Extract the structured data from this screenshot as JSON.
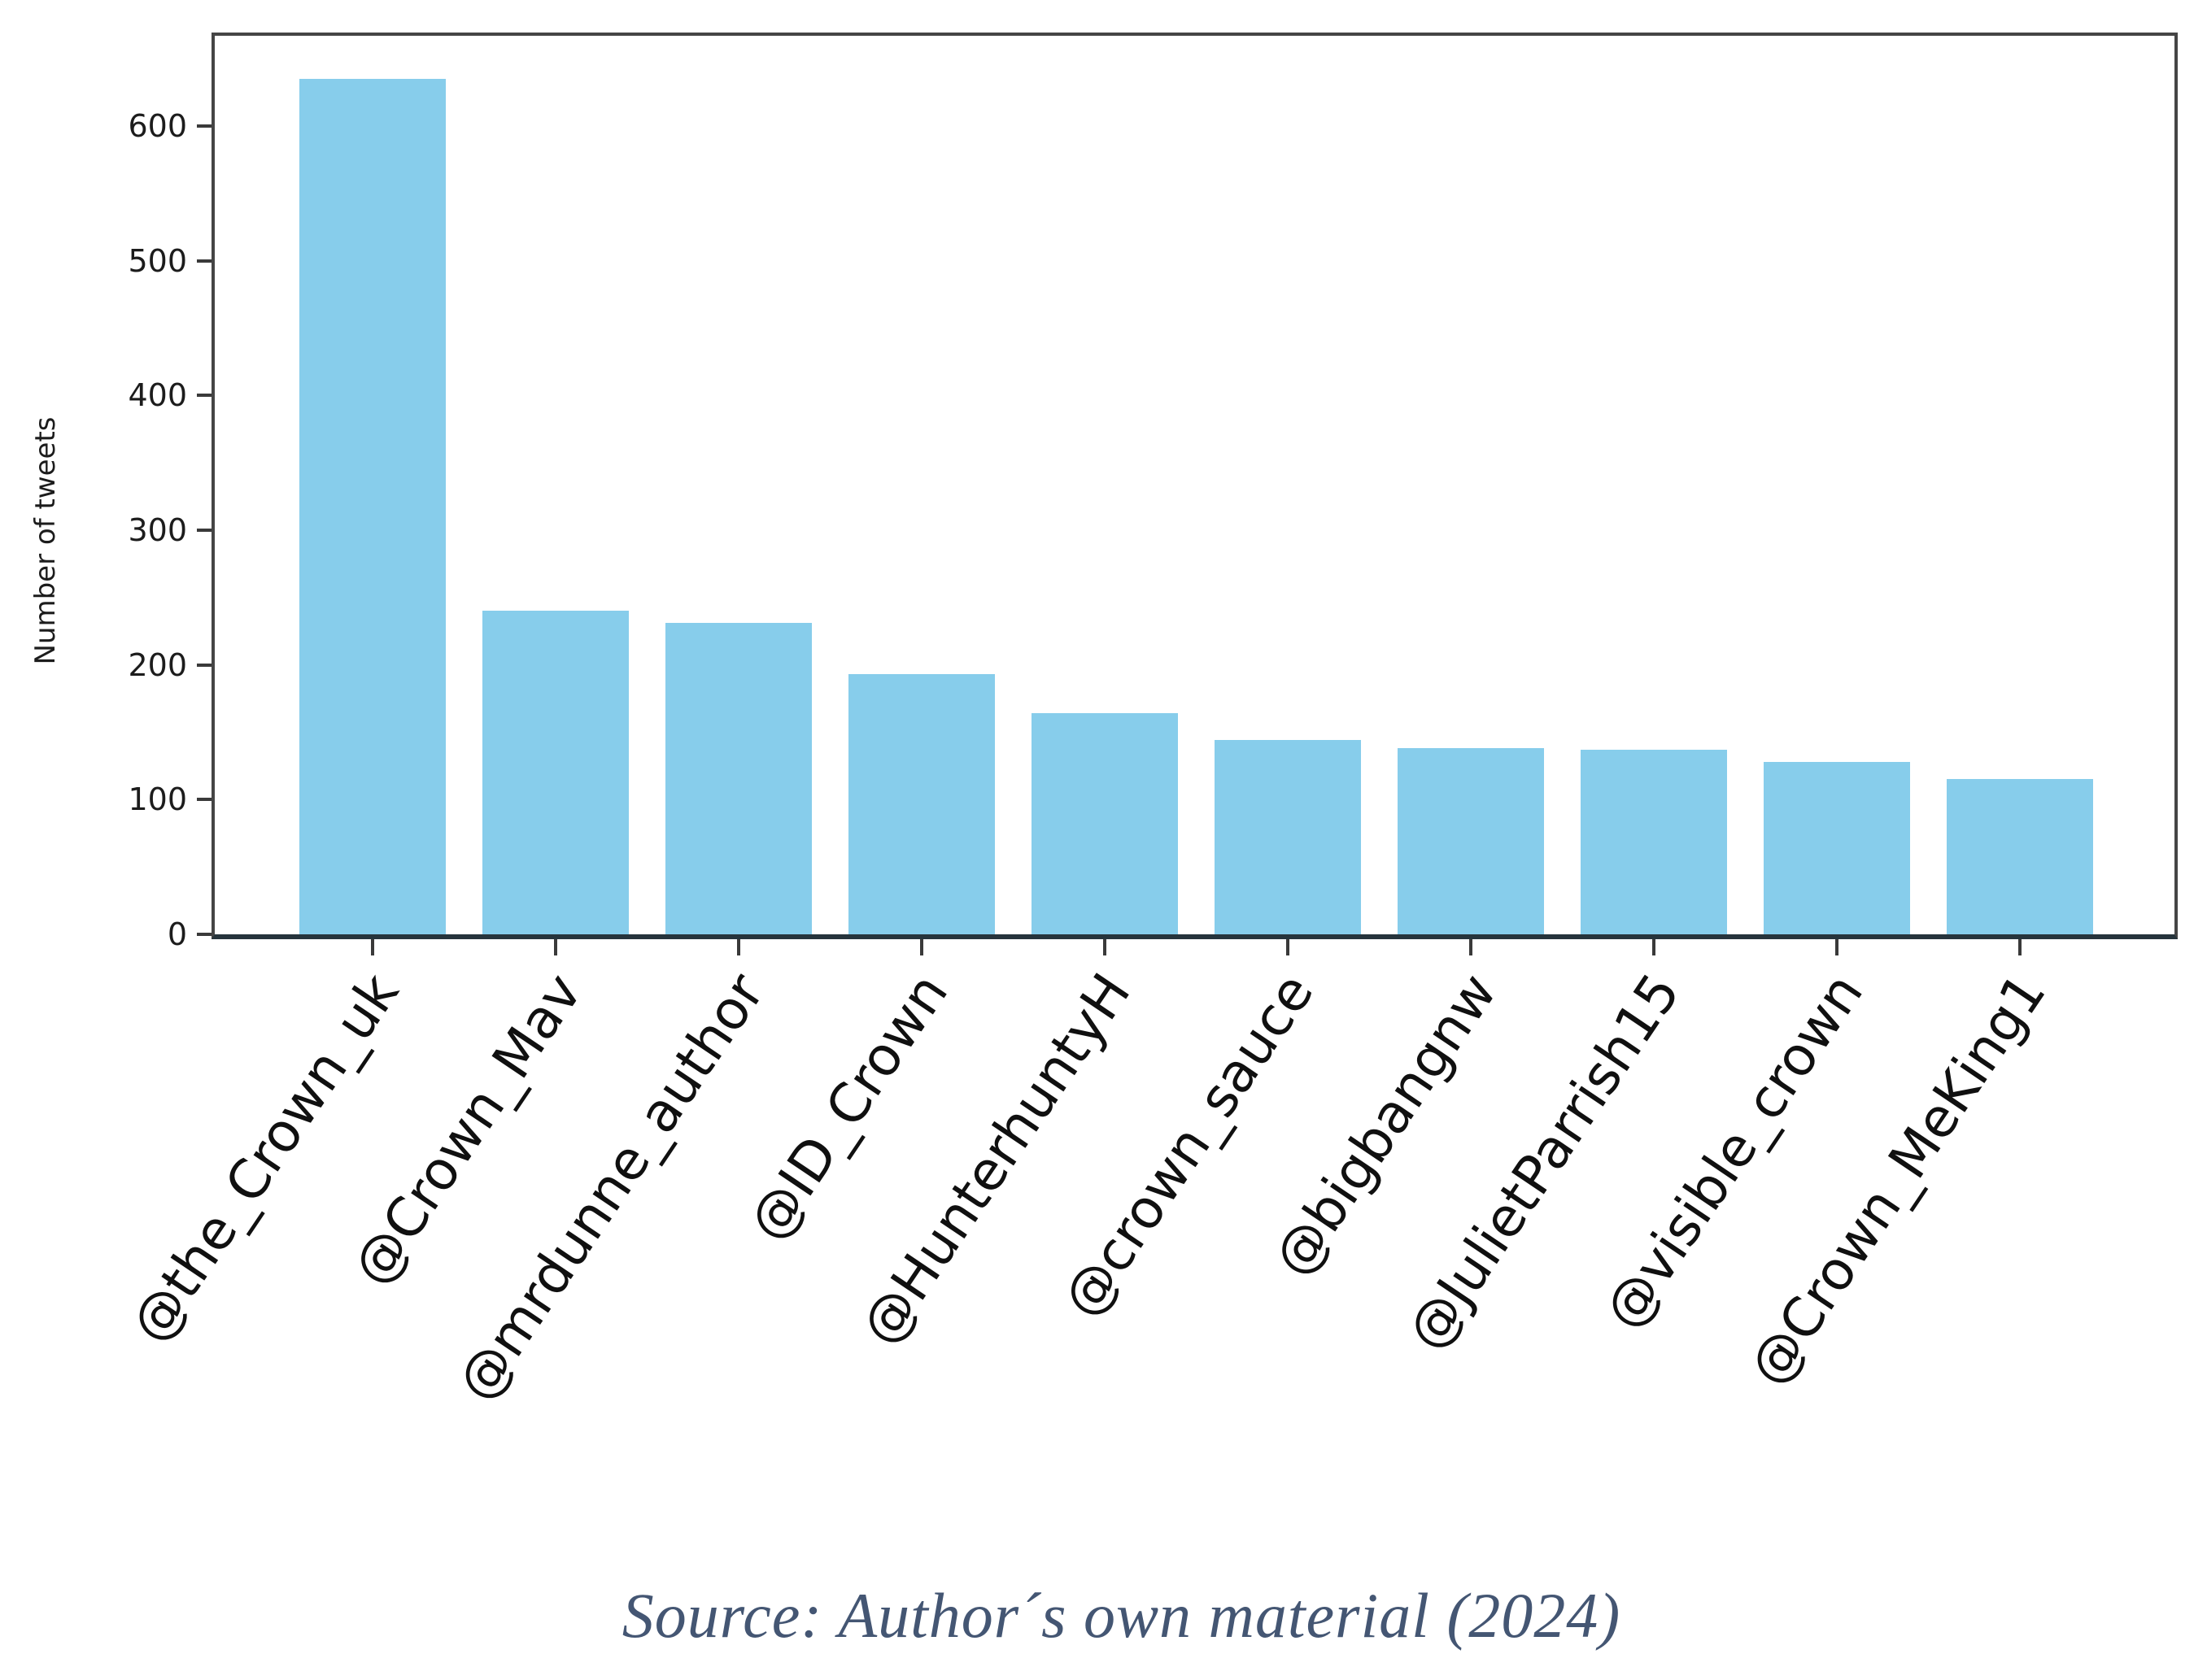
{
  "chart_data": {
    "type": "bar",
    "title": "",
    "xlabel": "",
    "ylabel": "Number of tweets",
    "categories": [
      "@the_Crown_uk",
      "@Crown_Mav",
      "@mrdunne_author",
      "@ID_Crown",
      "@HunterhuntyH",
      "@crown_sauce",
      "@bigbangnw",
      "@JulietParrish15",
      "@visible_crown",
      "@Crown_MeKing1"
    ],
    "values": [
      635,
      240,
      231,
      193,
      164,
      144,
      138,
      137,
      128,
      115
    ],
    "y_ticks": [
      0,
      100,
      200,
      300,
      400,
      500,
      600
    ],
    "ylim": [
      0,
      667
    ],
    "bar_color": "#87CDEB",
    "axis_color": "#3a3a3a",
    "grid": false,
    "legend_position": "none",
    "x_tick_rotation_deg": 56
  },
  "source": {
    "text": "Source: Author´s own material (2024)",
    "color": "#445673"
  }
}
